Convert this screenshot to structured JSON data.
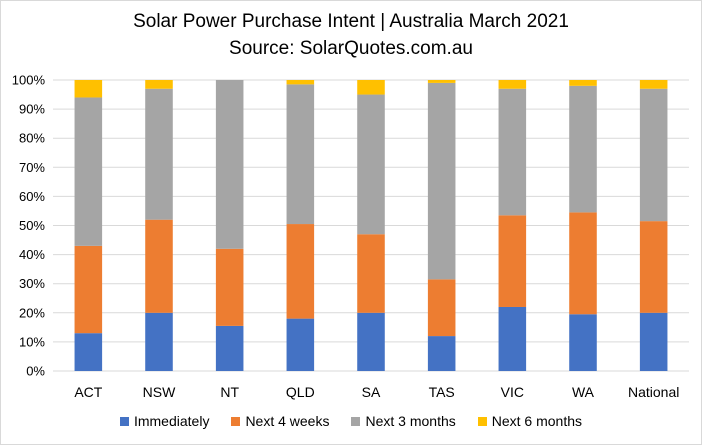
{
  "chart_data": {
    "type": "bar",
    "stacked": true,
    "title": "Solar Power Purchase Intent | Australia March 2021",
    "subtitle": "Source: SolarQuotes.com.au",
    "categories": [
      "ACT",
      "NSW",
      "NT",
      "QLD",
      "SA",
      "TAS",
      "VIC",
      "WA",
      "National"
    ],
    "y_ticks": [
      "0%",
      "10%",
      "20%",
      "30%",
      "40%",
      "50%",
      "60%",
      "70%",
      "80%",
      "90%",
      "100%"
    ],
    "ylim": [
      0,
      100
    ],
    "grid": true,
    "legend_position": "bottom",
    "series": [
      {
        "name": "Immediately",
        "color": "#4472c4",
        "values": [
          13,
          20,
          15.5,
          18,
          20,
          12,
          22,
          19.5,
          20
        ]
      },
      {
        "name": "Next 4 weeks",
        "color": "#ed7d31",
        "values": [
          30,
          32,
          26.5,
          32.5,
          27,
          19.5,
          31.5,
          35,
          31.5
        ]
      },
      {
        "name": "Next 3 months",
        "color": "#a5a5a5",
        "values": [
          51,
          45,
          58,
          48,
          48,
          67.5,
          43.5,
          43.5,
          45.5
        ]
      },
      {
        "name": "Next 6 months",
        "color": "#ffc000",
        "values": [
          6,
          3,
          0,
          1.5,
          5,
          1,
          3,
          2,
          3
        ]
      }
    ]
  }
}
